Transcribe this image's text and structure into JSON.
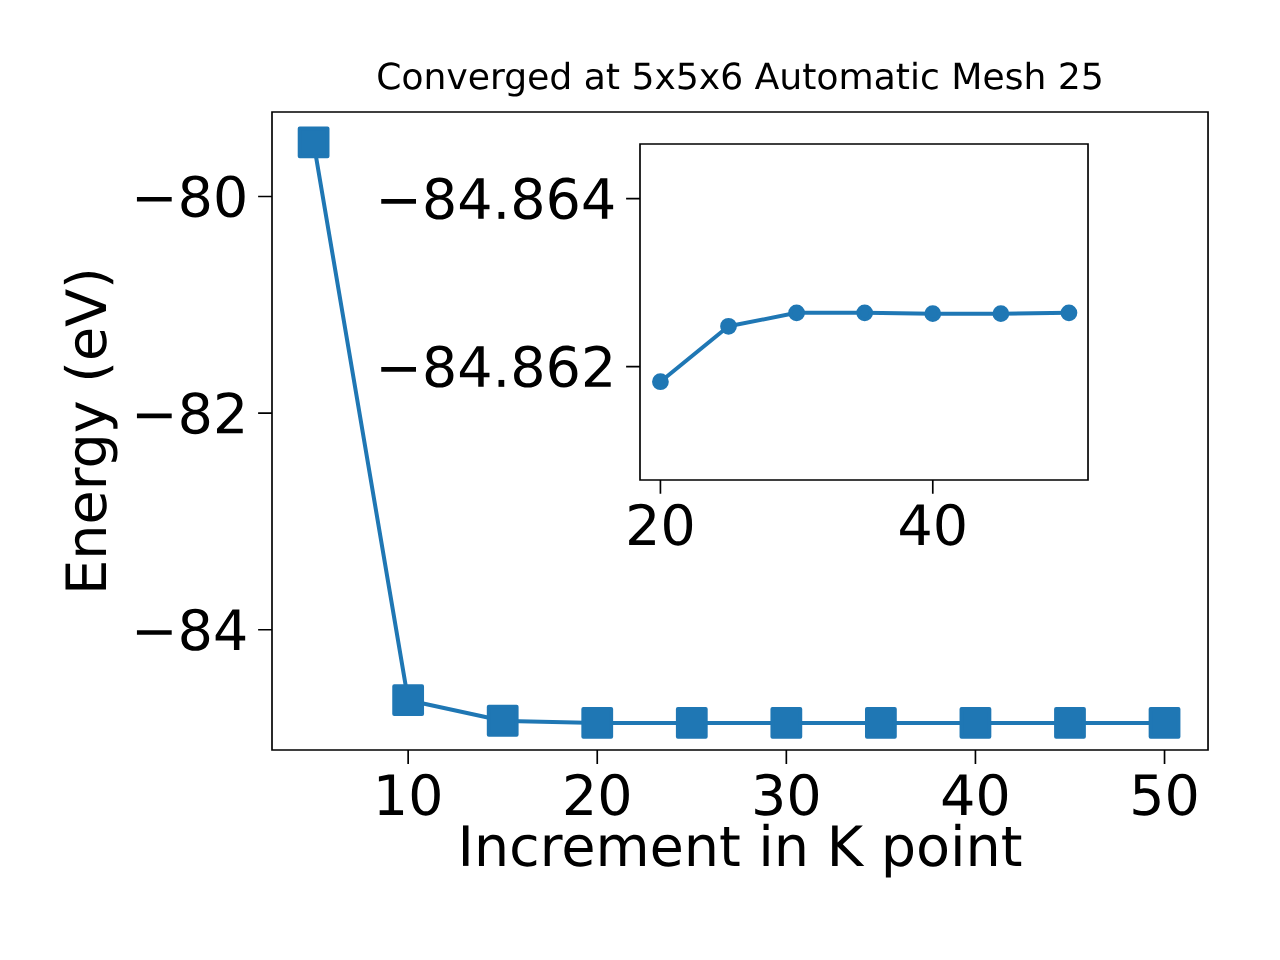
{
  "chart_data": [
    {
      "type": "line",
      "title": "Converged at 5x5x6 Automatic Mesh 25",
      "xlabel": "Increment in K point",
      "ylabel": "Energy (eV)",
      "x": [
        5,
        10,
        15,
        20,
        25,
        30,
        35,
        40,
        45,
        50
      ],
      "series": [
        {
          "color": "#1f77b4",
          "values": [
            -79.5,
            -84.65,
            -84.84,
            -84.86,
            -84.86,
            -84.86,
            -84.86,
            -84.86,
            -84.86,
            -84.86
          ]
        }
      ],
      "xlim": [
        2.8,
        52.3
      ],
      "ylim": [
        -85.11,
        -79.22
      ],
      "xticks": [
        10,
        20,
        30,
        40,
        50
      ],
      "yticks": [
        {
          "value": -84,
          "label": "−84"
        },
        {
          "value": -82,
          "label": "−82"
        },
        {
          "value": -80,
          "label": "−80"
        }
      ],
      "marker": "square",
      "line_style": "solid",
      "grid": false
    },
    {
      "type": "line",
      "x": [
        20,
        25,
        30,
        35,
        40,
        45,
        50
      ],
      "series": [
        {
          "color": "#1f77b4",
          "values": [
            -84.86182,
            -84.86248,
            -84.86264,
            -84.86264,
            -84.86263,
            -84.86263,
            -84.86264
          ]
        }
      ],
      "xlim": [
        18.5,
        51.4
      ],
      "ylim": [
        -84.86065,
        -84.86465
      ],
      "xticks": [
        20,
        40
      ],
      "yticks": [
        {
          "value": -84.864,
          "label": "−84.864"
        },
        {
          "value": -84.862,
          "label": "−84.862"
        }
      ],
      "marker": "circle",
      "line_style": "solid",
      "grid": false
    }
  ]
}
